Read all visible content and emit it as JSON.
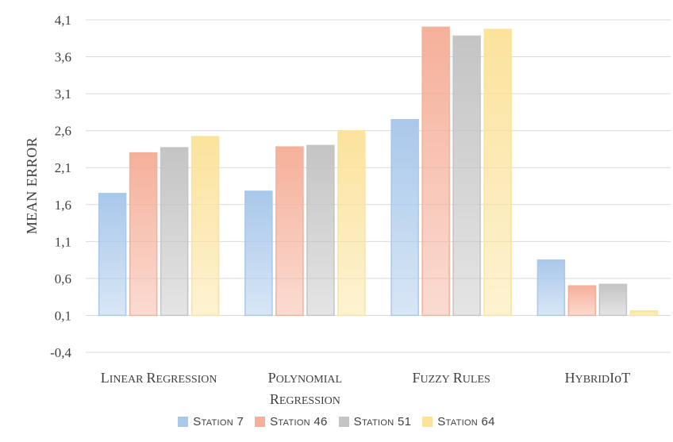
{
  "chart_data": {
    "type": "bar",
    "title": "",
    "xlabel": "",
    "ylabel": "MEAN ERROR",
    "ylim": [
      -0.4,
      4.1
    ],
    "yticks": [
      "-0,4",
      "0,1",
      "0,6",
      "1,1",
      "1,6",
      "2,1",
      "2,6",
      "3,1",
      "3,6",
      "4,1"
    ],
    "ytick_values": [
      -0.4,
      0.1,
      0.6,
      1.1,
      1.6,
      2.1,
      2.6,
      3.1,
      3.6,
      4.1
    ],
    "baseline": 0.1,
    "grid": true,
    "legend_position": "bottom",
    "categories": [
      "Linear Regression",
      "Polynomial Regression",
      "Fuzzy Rules",
      "HybridIoT"
    ],
    "category_lines": [
      [
        "Linear Regression"
      ],
      [
        "Polynomial",
        "Regression"
      ],
      [
        "Fuzzy Rules"
      ],
      [
        "HybridIoT"
      ]
    ],
    "series": [
      {
        "name": "Station 7",
        "values": [
          1.75,
          1.78,
          2.75,
          0.85
        ],
        "color": "#a9c8ea"
      },
      {
        "name": "Station 46",
        "values": [
          2.3,
          2.38,
          4.0,
          0.5
        ],
        "color": "#f5b09a"
      },
      {
        "name": "Station 51",
        "values": [
          2.37,
          2.4,
          3.88,
          0.52
        ],
        "color": "#c4c4c4"
      },
      {
        "name": "Station 64",
        "values": [
          2.52,
          2.6,
          3.97,
          0.16
        ],
        "color": "#fbe39c"
      }
    ]
  }
}
